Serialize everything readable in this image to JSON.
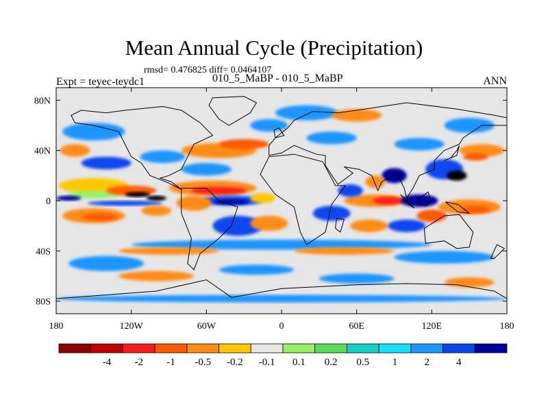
{
  "title": "Mean Annual Cycle (Precipitation)",
  "stats": "rmsd= 0.476825 diff= 0.0464107",
  "expt_label": "Expt = teyec-teydc1",
  "cases_label": "010_5_MaBP - 010_5_MaBP",
  "season_label": "ANN",
  "map": {
    "lon_range": [
      -180,
      180
    ],
    "lat_range": [
      -90,
      90
    ],
    "lon_ticks": [
      {
        "value": -180,
        "label": "180"
      },
      {
        "value": -120,
        "label": "120W"
      },
      {
        "value": -60,
        "label": "60W"
      },
      {
        "value": 0,
        "label": "0"
      },
      {
        "value": 60,
        "label": "60E"
      },
      {
        "value": 120,
        "label": "120E"
      },
      {
        "value": 180,
        "label": "180"
      }
    ],
    "lat_ticks": [
      {
        "value": 80,
        "label": "80N"
      },
      {
        "value": 40,
        "label": "40N"
      },
      {
        "value": 0,
        "label": "0"
      },
      {
        "value": -40,
        "label": "40S"
      },
      {
        "value": -80,
        "label": "80S"
      }
    ],
    "background_color": "#e6e6e6",
    "features": [
      {
        "lon": -150,
        "lat": 12,
        "rlon": 28,
        "rlat": 6,
        "c": 5
      },
      {
        "lon": -150,
        "lat": 5,
        "rlon": 22,
        "rlat": 3,
        "c": 7
      },
      {
        "lon": -120,
        "lat": 8,
        "rlon": 20,
        "rlat": 4,
        "c": 3
      },
      {
        "lon": -170,
        "lat": 2,
        "rlon": 10,
        "rlat": 2,
        "c": 13
      },
      {
        "lon": -115,
        "lat": 5,
        "rlon": 10,
        "rlat": 2,
        "c": 14
      },
      {
        "lon": -100,
        "lat": 2,
        "rlon": 8,
        "rlat": 2,
        "c": 16
      },
      {
        "lon": -125,
        "lat": -2,
        "rlon": 30,
        "rlat": 2,
        "c": 12
      },
      {
        "lon": -150,
        "lat": -12,
        "rlon": 25,
        "rlat": 6,
        "c": 4
      },
      {
        "lon": -145,
        "lat": -13,
        "rlon": 14,
        "rlat": 3,
        "c": 3
      },
      {
        "lon": -100,
        "lat": -8,
        "rlon": 12,
        "rlat": 4,
        "c": 4
      },
      {
        "lon": -55,
        "lat": 10,
        "rlon": 35,
        "rlat": 6,
        "c": 4
      },
      {
        "lon": -50,
        "lat": 8,
        "rlon": 22,
        "rlat": 3,
        "c": 2
      },
      {
        "lon": -40,
        "lat": 0,
        "rlon": 25,
        "rlat": 4,
        "c": 12
      },
      {
        "lon": -40,
        "lat": -1,
        "rlon": 14,
        "rlat": 2,
        "c": 13
      },
      {
        "lon": -70,
        "lat": -2,
        "rlon": 14,
        "rlat": 6,
        "c": 4
      },
      {
        "lon": -15,
        "lat": 2,
        "rlon": 10,
        "rlat": 4,
        "c": 5
      },
      {
        "lon": -35,
        "lat": -20,
        "rlon": 20,
        "rlat": 8,
        "c": 12
      },
      {
        "lon": -10,
        "lat": -18,
        "rlon": 15,
        "rlat": 6,
        "c": 4
      },
      {
        "lon": -50,
        "lat": 40,
        "rlon": 30,
        "rlat": 6,
        "c": 4
      },
      {
        "lon": -30,
        "lat": 45,
        "rlon": 20,
        "rlat": 4,
        "c": 3
      },
      {
        "lon": -10,
        "lat": 60,
        "rlon": 15,
        "rlat": 5,
        "c": 11
      },
      {
        "lon": -60,
        "lat": 25,
        "rlon": 20,
        "rlat": 5,
        "c": 11
      },
      {
        "lon": -95,
        "lat": 35,
        "rlon": 18,
        "rlat": 5,
        "c": 11
      },
      {
        "lon": -150,
        "lat": 55,
        "rlon": 25,
        "rlat": 7,
        "c": 11
      },
      {
        "lon": -140,
        "lat": 30,
        "rlon": 20,
        "rlat": 5,
        "c": 12
      },
      {
        "lon": -165,
        "lat": 40,
        "rlon": 12,
        "rlat": 5,
        "c": 4
      },
      {
        "lon": 20,
        "lat": 70,
        "rlon": 25,
        "rlat": 6,
        "c": 11
      },
      {
        "lon": 40,
        "lat": 50,
        "rlon": 20,
        "rlat": 5,
        "c": 11
      },
      {
        "lon": 60,
        "lat": 68,
        "rlon": 20,
        "rlat": 5,
        "c": 4
      },
      {
        "lon": 110,
        "lat": 45,
        "rlon": 20,
        "rlat": 5,
        "c": 11
      },
      {
        "lon": 150,
        "lat": 60,
        "rlon": 20,
        "rlat": 6,
        "c": 11
      },
      {
        "lon": 160,
        "lat": 40,
        "rlon": 18,
        "rlat": 5,
        "c": 4
      },
      {
        "lon": 155,
        "lat": 35,
        "rlon": 10,
        "rlat": 3,
        "c": 3
      },
      {
        "lon": 130,
        "lat": 25,
        "rlon": 15,
        "rlat": 8,
        "c": 12
      },
      {
        "lon": 140,
        "lat": 20,
        "rlon": 8,
        "rlat": 4,
        "c": 15
      },
      {
        "lon": 90,
        "lat": 20,
        "rlon": 10,
        "rlat": 6,
        "c": 13
      },
      {
        "lon": 75,
        "lat": 15,
        "rlon": 8,
        "rlat": 5,
        "c": 4
      },
      {
        "lon": 75,
        "lat": 0,
        "rlon": 25,
        "rlat": 5,
        "c": 4
      },
      {
        "lon": 85,
        "lat": 0,
        "rlon": 12,
        "rlat": 3,
        "c": 2
      },
      {
        "lon": 110,
        "lat": 0,
        "rlon": 15,
        "rlat": 5,
        "c": 13
      },
      {
        "lon": 150,
        "lat": -5,
        "rlon": 25,
        "rlat": 6,
        "c": 4
      },
      {
        "lon": 155,
        "lat": -7,
        "rlon": 12,
        "rlat": 3,
        "c": 3
      },
      {
        "lon": 120,
        "lat": -12,
        "rlon": 12,
        "rlat": 5,
        "c": 3
      },
      {
        "lon": 55,
        "lat": 8,
        "rlon": 10,
        "rlat": 5,
        "c": 12
      },
      {
        "lon": 40,
        "lat": -10,
        "rlon": 15,
        "rlat": 6,
        "c": 12
      },
      {
        "lon": 70,
        "lat": -20,
        "rlon": 15,
        "rlat": 5,
        "c": 4
      },
      {
        "lon": 100,
        "lat": -20,
        "rlon": 15,
        "rlat": 5,
        "c": 12
      },
      {
        "lon": 0,
        "lat": -35,
        "rlon": 120,
        "rlat": 4,
        "c": 11
      },
      {
        "lon": 50,
        "lat": -40,
        "rlon": 40,
        "rlat": 3,
        "c": 4
      },
      {
        "lon": -90,
        "lat": -40,
        "rlon": 40,
        "rlat": 3,
        "c": 4
      },
      {
        "lon": 130,
        "lat": -45,
        "rlon": 40,
        "rlat": 5,
        "c": 11
      },
      {
        "lon": -140,
        "lat": -50,
        "rlon": 30,
        "rlat": 6,
        "c": 11
      },
      {
        "lon": -20,
        "lat": -55,
        "rlon": 30,
        "rlat": 4,
        "c": 11
      },
      {
        "lon": -100,
        "lat": -60,
        "rlon": 30,
        "rlat": 4,
        "c": 4
      },
      {
        "lon": 60,
        "lat": -62,
        "rlon": 30,
        "rlat": 4,
        "c": 11
      },
      {
        "lon": 150,
        "lat": -65,
        "rlon": 20,
        "rlat": 4,
        "c": 4
      },
      {
        "lon": 0,
        "lat": -78,
        "rlon": 180,
        "rlat": 3,
        "c": 11
      }
    ],
    "continents": [
      {
        "name": "north-america",
        "points": [
          [
            -168,
            68
          ],
          [
            -160,
            72
          ],
          [
            -140,
            70
          ],
          [
            -125,
            72
          ],
          [
            -95,
            75
          ],
          [
            -80,
            72
          ],
          [
            -65,
            62
          ],
          [
            -55,
            52
          ],
          [
            -70,
            45
          ],
          [
            -75,
            35
          ],
          [
            -80,
            25
          ],
          [
            -90,
            20
          ],
          [
            -97,
            18
          ],
          [
            -88,
            15
          ],
          [
            -80,
            9
          ],
          [
            -90,
            14
          ],
          [
            -105,
            20
          ],
          [
            -112,
            30
          ],
          [
            -120,
            35
          ],
          [
            -125,
            45
          ],
          [
            -130,
            55
          ],
          [
            -150,
            60
          ],
          [
            -165,
            62
          ]
        ]
      },
      {
        "name": "greenland",
        "points": [
          [
            -55,
            82
          ],
          [
            -30,
            83
          ],
          [
            -20,
            78
          ],
          [
            -25,
            70
          ],
          [
            -42,
            60
          ],
          [
            -50,
            65
          ],
          [
            -58,
            76
          ]
        ]
      },
      {
        "name": "south-america",
        "points": [
          [
            -80,
            10
          ],
          [
            -60,
            10
          ],
          [
            -50,
            0
          ],
          [
            -35,
            -5
          ],
          [
            -40,
            -20
          ],
          [
            -50,
            -30
          ],
          [
            -65,
            -42
          ],
          [
            -70,
            -55
          ],
          [
            -75,
            -50
          ],
          [
            -72,
            -30
          ],
          [
            -80,
            -10
          ]
        ]
      },
      {
        "name": "eurasia",
        "points": [
          [
            -10,
            36
          ],
          [
            -10,
            44
          ],
          [
            -5,
            50
          ],
          [
            5,
            58
          ],
          [
            10,
            64
          ],
          [
            25,
            71
          ],
          [
            45,
            70
          ],
          [
            60,
            72
          ],
          [
            80,
            75
          ],
          [
            100,
            78
          ],
          [
            140,
            73
          ],
          [
            170,
            68
          ],
          [
            180,
            66
          ],
          [
            180,
            60
          ],
          [
            160,
            60
          ],
          [
            145,
            50
          ],
          [
            142,
            45
          ],
          [
            130,
            40
          ],
          [
            122,
            32
          ],
          [
            122,
            25
          ],
          [
            110,
            20
          ],
          [
            105,
            10
          ],
          [
            100,
            2
          ],
          [
            98,
            10
          ],
          [
            92,
            22
          ],
          [
            80,
            15
          ],
          [
            77,
            8
          ],
          [
            72,
            20
          ],
          [
            62,
            25
          ],
          [
            50,
            27
          ],
          [
            57,
            22
          ],
          [
            45,
            13
          ],
          [
            35,
            28
          ],
          [
            35,
            36
          ],
          [
            28,
            37
          ],
          [
            20,
            40
          ],
          [
            10,
            44
          ],
          [
            0,
            38
          ]
        ]
      },
      {
        "name": "africa",
        "points": [
          [
            -17,
            21
          ],
          [
            -10,
            35
          ],
          [
            10,
            37
          ],
          [
            33,
            31
          ],
          [
            43,
            12
          ],
          [
            51,
            12
          ],
          [
            40,
            -3
          ],
          [
            35,
            -25
          ],
          [
            20,
            -35
          ],
          [
            15,
            -25
          ],
          [
            10,
            -5
          ],
          [
            -5,
            5
          ]
        ]
      },
      {
        "name": "australia",
        "points": [
          [
            114,
            -22
          ],
          [
            130,
            -12
          ],
          [
            142,
            -11
          ],
          [
            153,
            -25
          ],
          [
            150,
            -37
          ],
          [
            140,
            -38
          ],
          [
            130,
            -32
          ],
          [
            115,
            -34
          ]
        ]
      },
      {
        "name": "antarctica",
        "points": [
          [
            -180,
            -78
          ],
          [
            -140,
            -75
          ],
          [
            -100,
            -72
          ],
          [
            -60,
            -63
          ],
          [
            -40,
            -77
          ],
          [
            0,
            -70
          ],
          [
            60,
            -67
          ],
          [
            100,
            -66
          ],
          [
            140,
            -67
          ],
          [
            170,
            -72
          ],
          [
            180,
            -78
          ],
          [
            180,
            -90
          ],
          [
            -180,
            -90
          ]
        ]
      },
      {
        "name": "borneo",
        "points": [
          [
            109,
            1
          ],
          [
            117,
            7
          ],
          [
            119,
            1
          ],
          [
            116,
            -4
          ],
          [
            110,
            -3
          ]
        ]
      },
      {
        "name": "sumatra",
        "points": [
          [
            95,
            5
          ],
          [
            106,
            -6
          ],
          [
            102,
            -3
          ]
        ]
      },
      {
        "name": "new-guinea",
        "points": [
          [
            131,
            -1
          ],
          [
            141,
            -3
          ],
          [
            150,
            -10
          ],
          [
            141,
            -9
          ]
        ]
      },
      {
        "name": "japan",
        "points": [
          [
            130,
            32
          ],
          [
            140,
            36
          ],
          [
            142,
            44
          ],
          [
            140,
            40
          ],
          [
            135,
            34
          ]
        ]
      },
      {
        "name": "madagascar",
        "points": [
          [
            44,
            -14
          ],
          [
            50,
            -15
          ],
          [
            47,
            -25
          ],
          [
            43,
            -22
          ]
        ]
      },
      {
        "name": "new-zealand",
        "points": [
          [
            172,
            -35
          ],
          [
            178,
            -38
          ],
          [
            170,
            -46
          ],
          [
            167,
            -46
          ]
        ]
      },
      {
        "name": "uk",
        "points": [
          [
            -5,
            50
          ],
          [
            2,
            52
          ],
          [
            -2,
            58
          ],
          [
            -6,
            56
          ]
        ]
      }
    ]
  },
  "colorbar": {
    "colors": [
      "#8b0000",
      "#c30000",
      "#ff1a1a",
      "#ff5a00",
      "#ff8c14",
      "#ffc800",
      "#e6e6e6",
      "#96f064",
      "#5adc5a",
      "#14d2c8",
      "#14e1ff",
      "#1e96ff",
      "#0a46f0",
      "#0000a0"
    ],
    "labels": [
      "-4",
      "-2",
      "-1",
      "-0.5",
      "-0.2",
      "-0.1",
      "0.1",
      "0.2",
      "0.5",
      "1",
      "2",
      "4"
    ]
  }
}
